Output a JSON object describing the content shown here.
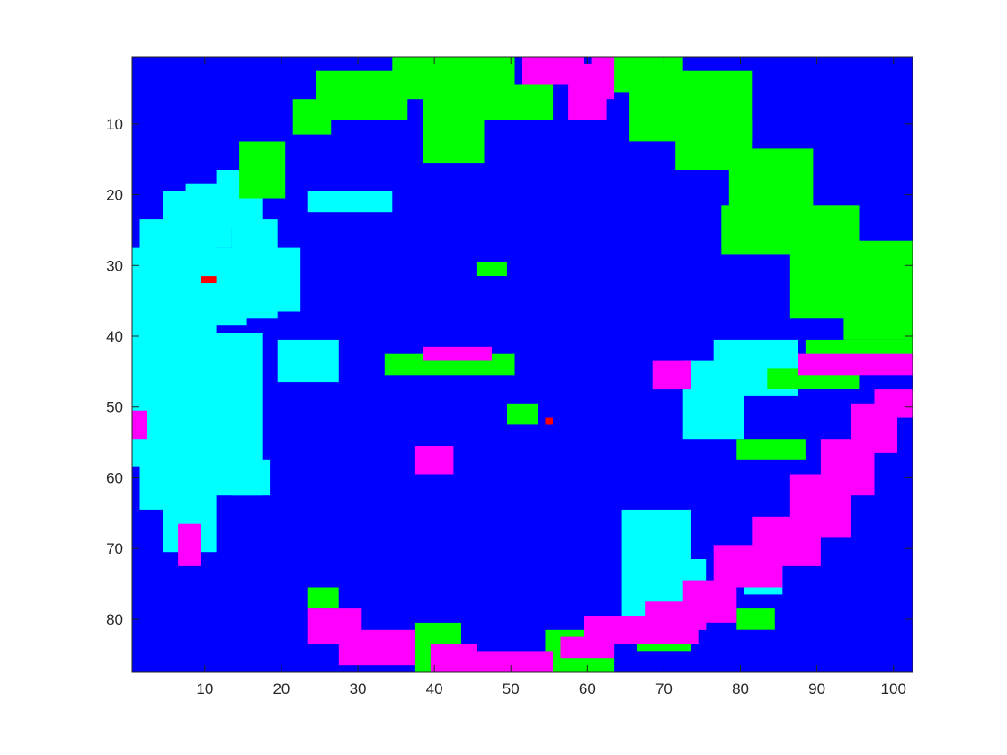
{
  "chart_data": {
    "type": "heatmap",
    "title": "",
    "xlabel": "",
    "ylabel": "",
    "xlim": [
      0.5,
      102.5
    ],
    "ylim": [
      0.5,
      87.5
    ],
    "y_reversed": true,
    "grid": false,
    "x_ticks": [
      10,
      20,
      30,
      40,
      50,
      60,
      70,
      80,
      90,
      100
    ],
    "y_ticks": [
      10,
      20,
      30,
      40,
      50,
      60,
      70,
      80
    ],
    "x_tick_labels": [
      "10",
      "20",
      "30",
      "40",
      "50",
      "60",
      "70",
      "80",
      "90",
      "100"
    ],
    "y_tick_labels": [
      "10",
      "20",
      "30",
      "40",
      "50",
      "60",
      "70",
      "80"
    ],
    "class_colors": {
      "background": "#0000ff",
      "cyan": "#00ffff",
      "green": "#00ff00",
      "magenta": "#ff00ff",
      "red": "#ff0000"
    },
    "grid_size": {
      "cols": 102,
      "rows": 87
    },
    "regions": [
      {
        "class": "cyan",
        "x": [
          1,
          3
        ],
        "y": [
          28,
          58
        ]
      },
      {
        "class": "cyan",
        "x": [
          2,
          8
        ],
        "y": [
          24,
          64
        ]
      },
      {
        "class": "cyan",
        "x": [
          5,
          11
        ],
        "y": [
          20,
          70
        ]
      },
      {
        "class": "cyan",
        "x": [
          8,
          13
        ],
        "y": [
          19,
          27
        ]
      },
      {
        "class": "cyan",
        "x": [
          12,
          17
        ],
        "y": [
          17,
          24
        ]
      },
      {
        "class": "cyan",
        "x": [
          11,
          15
        ],
        "y": [
          28,
          38
        ]
      },
      {
        "class": "cyan",
        "x": [
          14,
          19
        ],
        "y": [
          24,
          37
        ]
      },
      {
        "class": "cyan",
        "x": [
          18,
          22
        ],
        "y": [
          28,
          36
        ]
      },
      {
        "class": "cyan",
        "x": [
          11,
          17
        ],
        "y": [
          40,
          62
        ]
      },
      {
        "class": "cyan",
        "x": [
          14,
          18
        ],
        "y": [
          58,
          62
        ]
      },
      {
        "class": "cyan",
        "x": [
          24,
          34
        ],
        "y": [
          20,
          22
        ]
      },
      {
        "class": "cyan",
        "x": [
          20,
          27
        ],
        "y": [
          41,
          46
        ]
      },
      {
        "class": "cyan",
        "x": [
          65,
          73
        ],
        "y": [
          65,
          80
        ]
      },
      {
        "class": "cyan",
        "x": [
          71,
          75
        ],
        "y": [
          72,
          81
        ]
      },
      {
        "class": "cyan",
        "x": [
          73,
          80
        ],
        "y": [
          44,
          54
        ]
      },
      {
        "class": "cyan",
        "x": [
          77,
          87
        ],
        "y": [
          41,
          48
        ]
      },
      {
        "class": "cyan",
        "x": [
          81,
          85
        ],
        "y": [
          73,
          76
        ]
      },
      {
        "class": "green",
        "x": [
          22,
          26
        ],
        "y": [
          7,
          11
        ]
      },
      {
        "class": "green",
        "x": [
          25,
          36
        ],
        "y": [
          3,
          9
        ]
      },
      {
        "class": "green",
        "x": [
          35,
          50
        ],
        "y": [
          1,
          6
        ]
      },
      {
        "class": "green",
        "x": [
          39,
          46
        ],
        "y": [
          6,
          15
        ]
      },
      {
        "class": "green",
        "x": [
          47,
          55
        ],
        "y": [
          5,
          9
        ]
      },
      {
        "class": "green",
        "x": [
          63,
          72
        ],
        "y": [
          1,
          5
        ]
      },
      {
        "class": "green",
        "x": [
          66,
          81
        ],
        "y": [
          3,
          12
        ]
      },
      {
        "class": "green",
        "x": [
          72,
          81
        ],
        "y": [
          10,
          16
        ]
      },
      {
        "class": "green",
        "x": [
          79,
          89
        ],
        "y": [
          14,
          23
        ]
      },
      {
        "class": "green",
        "x": [
          78,
          95
        ],
        "y": [
          22,
          28
        ]
      },
      {
        "class": "green",
        "x": [
          87,
          102
        ],
        "y": [
          27,
          37
        ]
      },
      {
        "class": "green",
        "x": [
          94,
          102
        ],
        "y": [
          35,
          40
        ]
      },
      {
        "class": "green",
        "x": [
          15,
          20
        ],
        "y": [
          13,
          20
        ]
      },
      {
        "class": "green",
        "x": [
          34,
          50
        ],
        "y": [
          43,
          45
        ]
      },
      {
        "class": "green",
        "x": [
          89,
          102
        ],
        "y": [
          41,
          43
        ]
      },
      {
        "class": "green",
        "x": [
          84,
          95
        ],
        "y": [
          45,
          47
        ]
      },
      {
        "class": "green",
        "x": [
          80,
          88
        ],
        "y": [
          55,
          57
        ]
      },
      {
        "class": "green",
        "x": [
          50,
          53
        ],
        "y": [
          50,
          52
        ]
      },
      {
        "class": "green",
        "x": [
          46,
          49
        ],
        "y": [
          30,
          31
        ]
      },
      {
        "class": "green",
        "x": [
          38,
          43
        ],
        "y": [
          81,
          87
        ]
      },
      {
        "class": "green",
        "x": [
          55,
          63
        ],
        "y": [
          82,
          87
        ]
      },
      {
        "class": "green",
        "x": [
          67,
          73
        ],
        "y": [
          83,
          84
        ]
      },
      {
        "class": "green",
        "x": [
          24,
          27
        ],
        "y": [
          76,
          78
        ]
      },
      {
        "class": "green",
        "x": [
          80,
          84
        ],
        "y": [
          79,
          81
        ]
      },
      {
        "class": "magenta",
        "x": [
          52,
          59
        ],
        "y": [
          1,
          4
        ]
      },
      {
        "class": "magenta",
        "x": [
          58,
          62
        ],
        "y": [
          2,
          9
        ]
      },
      {
        "class": "magenta",
        "x": [
          61,
          63
        ],
        "y": [
          1,
          6
        ]
      },
      {
        "class": "magenta",
        "x": [
          24,
          30
        ],
        "y": [
          79,
          83
        ]
      },
      {
        "class": "magenta",
        "x": [
          28,
          37
        ],
        "y": [
          82,
          86
        ]
      },
      {
        "class": "magenta",
        "x": [
          40,
          45
        ],
        "y": [
          84,
          87
        ]
      },
      {
        "class": "magenta",
        "x": [
          45,
          55
        ],
        "y": [
          85,
          87
        ]
      },
      {
        "class": "magenta",
        "x": [
          57,
          63
        ],
        "y": [
          83,
          85
        ]
      },
      {
        "class": "magenta",
        "x": [
          60,
          74
        ],
        "y": [
          80,
          83
        ]
      },
      {
        "class": "magenta",
        "x": [
          68,
          75
        ],
        "y": [
          78,
          81
        ]
      },
      {
        "class": "magenta",
        "x": [
          73,
          79
        ],
        "y": [
          75,
          80
        ]
      },
      {
        "class": "magenta",
        "x": [
          77,
          85
        ],
        "y": [
          70,
          75
        ]
      },
      {
        "class": "magenta",
        "x": [
          82,
          90
        ],
        "y": [
          66,
          72
        ]
      },
      {
        "class": "magenta",
        "x": [
          87,
          94
        ],
        "y": [
          60,
          68
        ]
      },
      {
        "class": "magenta",
        "x": [
          91,
          97
        ],
        "y": [
          55,
          62
        ]
      },
      {
        "class": "magenta",
        "x": [
          95,
          100
        ],
        "y": [
          50,
          56
        ]
      },
      {
        "class": "magenta",
        "x": [
          98,
          102
        ],
        "y": [
          48,
          51
        ]
      },
      {
        "class": "magenta",
        "x": [
          88,
          102
        ],
        "y": [
          43,
          45
        ]
      },
      {
        "class": "magenta",
        "x": [
          39,
          47
        ],
        "y": [
          42,
          43
        ]
      },
      {
        "class": "magenta",
        "x": [
          38,
          42
        ],
        "y": [
          56,
          59
        ]
      },
      {
        "class": "magenta",
        "x": [
          69,
          73
        ],
        "y": [
          44,
          47
        ]
      },
      {
        "class": "magenta",
        "x": [
          1,
          2
        ],
        "y": [
          51,
          54
        ]
      },
      {
        "class": "magenta",
        "x": [
          7,
          9
        ],
        "y": [
          67,
          72
        ]
      },
      {
        "class": "red",
        "x": [
          10,
          11
        ],
        "y": [
          32,
          32
        ]
      },
      {
        "class": "red",
        "x": [
          55,
          55
        ],
        "y": [
          52,
          52
        ]
      }
    ]
  }
}
